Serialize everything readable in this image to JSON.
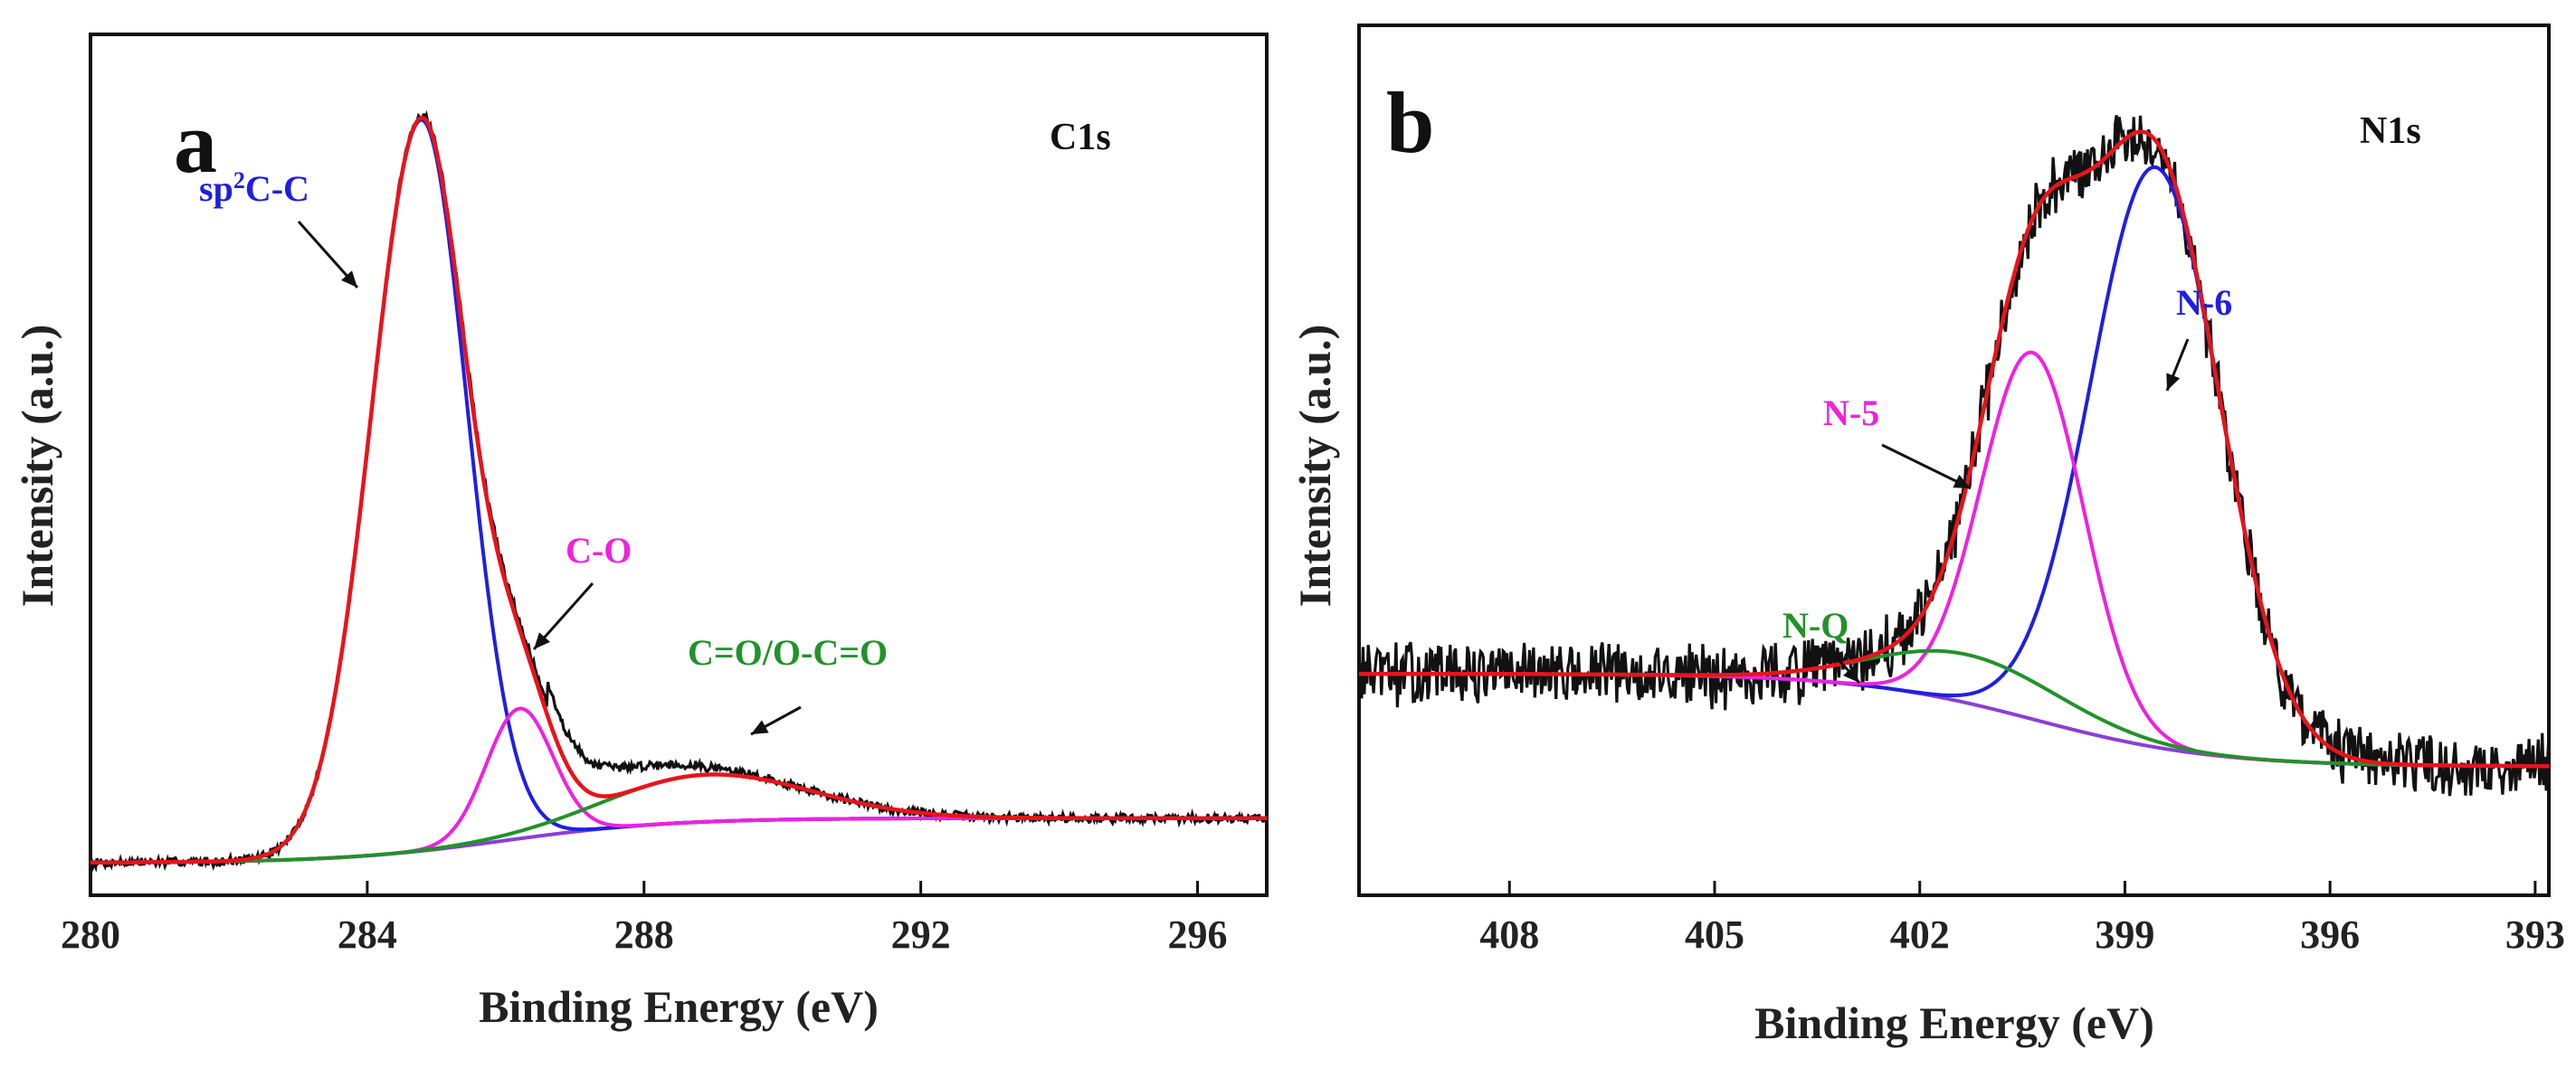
{
  "figure": {
    "panel_a": {
      "letter": "a",
      "spectrum": "C1s",
      "xlabel": "Binding Energy (eV)",
      "ylabel": "Intensity (a.u.)"
    },
    "panel_b": {
      "letter": "b",
      "spectrum": "N1s",
      "xlabel": "Binding Energy (eV)",
      "ylabel": "Intensity (a.u.)"
    }
  },
  "colors": {
    "raw": "#111111",
    "envelope": "#e8141b",
    "background": "#8a3fd6",
    "blue": "#1f1fe0",
    "magenta": "#ee22dd",
    "green": "#22922a",
    "frame": "#111111"
  },
  "chart_data": [
    {
      "type": "line",
      "panel": "a",
      "title": "C1s",
      "xlabel": "Binding Energy (eV)",
      "ylabel": "Intensity (a.u.)",
      "xlim": [
        280,
        297
      ],
      "ylim": [
        0,
        1.06
      ],
      "x_reversed": false,
      "xticks": [
        280,
        284,
        288,
        292,
        296
      ],
      "tick_labels": [
        "280",
        "284",
        "288",
        "292",
        "296"
      ],
      "yticks": [],
      "background_model": {
        "type": "shirley-step",
        "low": 0.04,
        "high": 0.095,
        "center": 286.0,
        "width": 1.2
      },
      "components": [
        {
          "name": "sp²C-C",
          "label_base": "sp",
          "label_sup": "2",
          "label_rest": "C-C",
          "center": 284.78,
          "height": 0.9,
          "sigma_left": 0.72,
          "sigma_right": 0.66,
          "color_key": "blue"
        },
        {
          "name": "C-O",
          "label_base": "C-O",
          "label_sup": "",
          "label_rest": "",
          "center": 286.2,
          "height": 0.16,
          "sigma_left": 0.48,
          "sigma_right": 0.48,
          "color_key": "magenta"
        },
        {
          "name": "C=O/O-C=O",
          "label_base": "C=O/O-C=O",
          "label_sup": "",
          "label_rest": "",
          "center": 288.9,
          "height": 0.058,
          "sigma_left": 1.4,
          "sigma_right": 1.5,
          "color_key": "green"
        }
      ],
      "series": [
        {
          "name": "Raw data",
          "color_key": "raw",
          "noise": 0.004,
          "seed": 7,
          "extra_bump": {
            "center": 286.9,
            "height": 0.04,
            "sigma": 1.2
          }
        },
        {
          "name": "Envelope",
          "color_key": "envelope"
        },
        {
          "name": "Background",
          "color_key": "background"
        }
      ]
    },
    {
      "type": "line",
      "panel": "b",
      "title": "N1s",
      "xlabel": "Binding Energy (eV)",
      "ylabel": "Intensity (a.u.)",
      "xlim": [
        410.2,
        392.8
      ],
      "ylim": [
        0,
        1.08
      ],
      "x_reversed": true,
      "xticks": [
        408,
        405,
        402,
        399,
        396,
        393
      ],
      "tick_labels": [
        "408",
        "405",
        "402",
        "399",
        "396",
        "393"
      ],
      "yticks": [],
      "background_model": {
        "type": "shirley-step",
        "low": 0.16,
        "high": 0.275,
        "center": 400.3,
        "width": 1.3
      },
      "components": [
        {
          "name": "N-6",
          "label_base": "N-6",
          "label_sup": "",
          "label_rest": "",
          "center": 398.55,
          "height": 0.72,
          "sigma_left": 0.95,
          "sigma_right": 0.95,
          "color_key": "blue"
        },
        {
          "name": "N-5",
          "label_base": "N-5",
          "label_sup": "",
          "label_rest": "",
          "center": 400.35,
          "height": 0.455,
          "sigma_left": 0.75,
          "sigma_right": 0.75,
          "color_key": "magenta"
        },
        {
          "name": "N-Q",
          "label_base": "N-Q",
          "label_sup": "",
          "label_rest": "",
          "center": 401.3,
          "height": 0.06,
          "sigma_left": 1.35,
          "sigma_right": 1.35,
          "color_key": "green"
        }
      ],
      "series": [
        {
          "name": "Raw data",
          "color_key": "raw",
          "noise": 0.028,
          "seed": 13
        },
        {
          "name": "Envelope",
          "color_key": "envelope"
        },
        {
          "name": "Background",
          "color_key": "background"
        }
      ]
    }
  ]
}
